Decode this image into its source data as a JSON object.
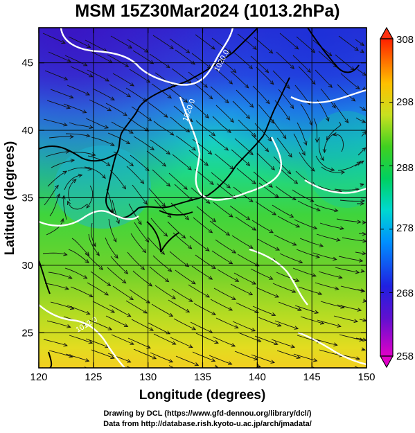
{
  "title": "MSM 15Z30Mar2024 (1013.2hPa)",
  "map": {
    "x_axis": {
      "label": "Longitude (degrees)",
      "range": [
        120,
        150
      ],
      "ticks": [
        120,
        125,
        130,
        135,
        140,
        145,
        150
      ],
      "tick_labels": [
        "120",
        "125",
        "130",
        "135",
        "140",
        "145",
        "150"
      ]
    },
    "y_axis": {
      "label": "Latitude  (degrees)",
      "range": [
        22.4,
        47.6
      ],
      "ticks": [
        25,
        30,
        35,
        40,
        45
      ],
      "tick_labels": [
        "25",
        "30",
        "35",
        "40",
        "45"
      ]
    },
    "grid": true,
    "field": "surface temperature shading with wind streamlines and isobars"
  },
  "colorbar": {
    "ticks": [
      "308",
      "298",
      "288",
      "278",
      "268",
      "258"
    ],
    "range": [
      258,
      308
    ],
    "colors": [
      "#c800c8",
      "#2020e0",
      "#00c8ff",
      "#00e080",
      "#40d020",
      "#d0e020",
      "#ffc000",
      "#ff2000"
    ]
  },
  "isobars": [
    {
      "label": "1020.0"
    },
    {
      "label": "1020.0"
    },
    {
      "label": "1012.0"
    }
  ],
  "credits": {
    "line1": "Drawing by DCL (https://www.gfd-dennou.org/library/dcl/)",
    "line2": "Data from http://database.rish.kyoto-u.ac.jp/arch/jmadata/"
  }
}
